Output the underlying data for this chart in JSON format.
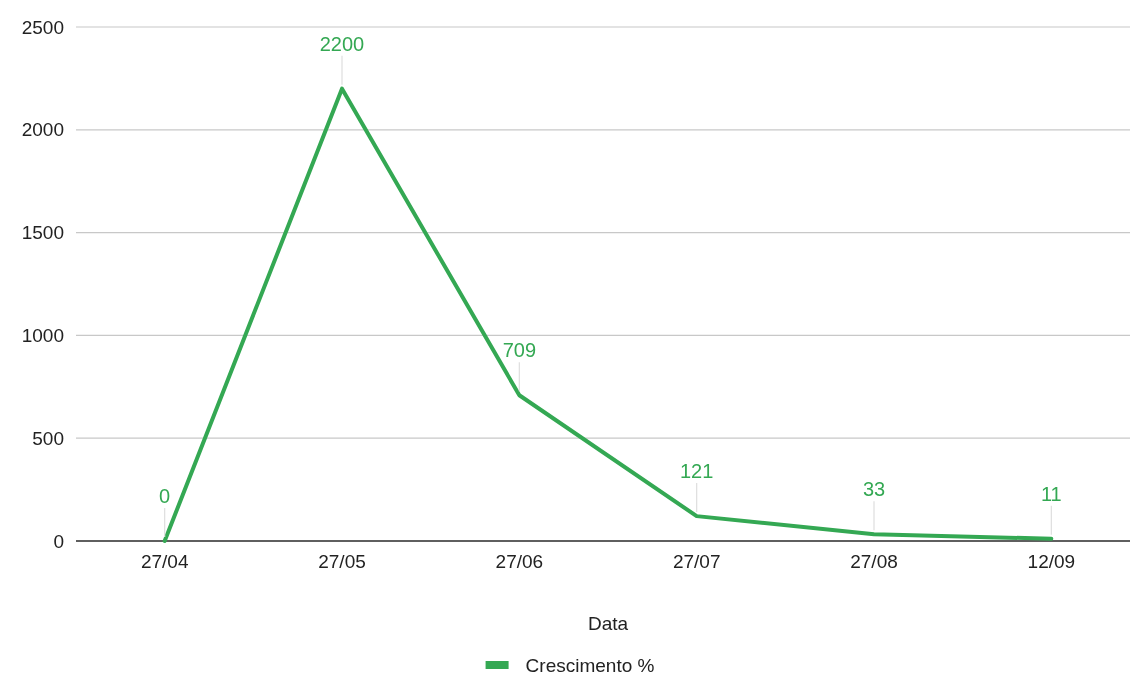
{
  "chart_data": {
    "type": "line",
    "xlabel": "Data",
    "categories": [
      "27/04",
      "27/05",
      "27/06",
      "27/07",
      "27/08",
      "12/09"
    ],
    "series": [
      {
        "name": "Crescimento %",
        "color": "#34a853",
        "values": [
          0,
          2200,
          709,
          121,
          33,
          11
        ]
      }
    ],
    "ylim": [
      0,
      2500
    ],
    "yticks": [
      0,
      500,
      1000,
      1500,
      2000,
      2500
    ],
    "grid": "y",
    "legend": "bottom",
    "data_labels": true,
    "marker": "none",
    "line_style": "solid"
  }
}
